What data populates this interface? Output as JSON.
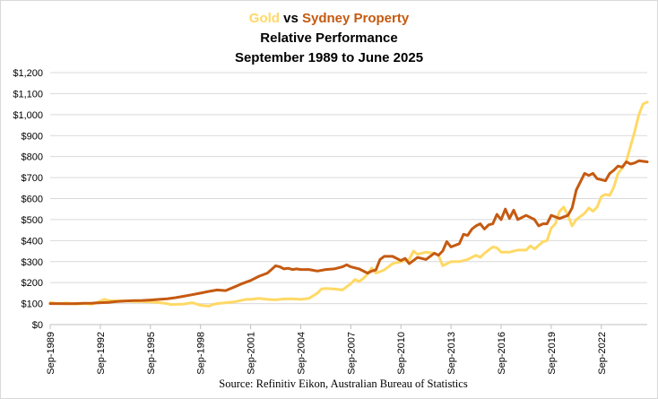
{
  "chart_data": {
    "type": "line",
    "title": {
      "gold_word": "Gold",
      "vs_word": " vs ",
      "property_word": "Sydney Property",
      "line2": "Relative Performance",
      "line3": "September 1989 to June 2025"
    },
    "xlabel": "",
    "ylabel": "",
    "ylim": [
      0,
      1200
    ],
    "y_ticks": [
      0,
      100,
      200,
      300,
      400,
      500,
      600,
      700,
      800,
      900,
      1000,
      1100,
      1200
    ],
    "y_tick_labels": [
      "$0",
      "$100",
      "$200",
      "$300",
      "$400",
      "$500",
      "$600",
      "$700",
      "$800",
      "$900",
      "$1,000",
      "$1,100",
      "$1,200"
    ],
    "xlim": [
      1989.75,
      2025.5
    ],
    "x_ticks": [
      1989.75,
      1992.75,
      1995.75,
      1998.75,
      2001.75,
      2004.75,
      2007.75,
      2010.75,
      2013.75,
      2016.75,
      2019.75,
      2022.75
    ],
    "x_tick_labels": [
      "Sep-1989",
      "Sep-1992",
      "Sep-1995",
      "Sep-1998",
      "Sep-2001",
      "Sep-2004",
      "Sep-2007",
      "Sep-2010",
      "Sep-2013",
      "Sep-2016",
      "Sep-2019",
      "Sep-2022"
    ],
    "grid": true,
    "legend": "none",
    "source": "Source: Refinitiv Eikon, Australian Bureau of Statistics",
    "colors": {
      "gold": "#ffd966",
      "property": "#c55a11",
      "grid": "#d9d9d9",
      "axis": "#bfbfbf"
    },
    "series": [
      {
        "name": "Gold",
        "color": "#ffd966",
        "x": [
          1989.75,
          1990.25,
          1990.75,
          1991.25,
          1991.75,
          1992.25,
          1992.75,
          1993.0,
          1993.25,
          1993.5,
          1993.75,
          1994.25,
          1994.75,
          1995.25,
          1995.75,
          1996.25,
          1996.75,
          1997.0,
          1997.25,
          1997.75,
          1998.25,
          1998.5,
          1998.75,
          1999.25,
          1999.5,
          1999.75,
          2000.25,
          2000.75,
          2001.25,
          2001.5,
          2001.75,
          2002.25,
          2002.75,
          2003.25,
          2003.75,
          2004.25,
          2004.75,
          2005.25,
          2005.75,
          2006.0,
          2006.25,
          2006.75,
          2007.25,
          2007.75,
          2008.0,
          2008.25,
          2008.5,
          2008.75,
          2009.0,
          2009.25,
          2009.75,
          2010.25,
          2010.75,
          2011.25,
          2011.5,
          2011.75,
          2012.25,
          2012.75,
          2013.0,
          2013.25,
          2013.5,
          2013.75,
          2014.25,
          2014.75,
          2015.25,
          2015.5,
          2015.75,
          2016.25,
          2016.5,
          2016.75,
          2017.25,
          2017.75,
          2018.25,
          2018.5,
          2018.75,
          2019.25,
          2019.5,
          2019.75,
          2020.0,
          2020.25,
          2020.5,
          2020.75,
          2021.0,
          2021.25,
          2021.75,
          2022.0,
          2022.25,
          2022.5,
          2022.75,
          2023.0,
          2023.25,
          2023.5,
          2023.75,
          2024.0,
          2024.25,
          2024.5,
          2024.75,
          2025.0,
          2025.25,
          2025.5
        ],
        "values": [
          105,
          100,
          103,
          98,
          100,
          97,
          112,
          120,
          115,
          113,
          113,
          113,
          110,
          110,
          108,
          105,
          100,
          95,
          96,
          98,
          104,
          98,
          92,
          88,
          96,
          100,
          104,
          108,
          116,
          120,
          120,
          125,
          120,
          118,
          122,
          123,
          120,
          125,
          150,
          170,
          172,
          170,
          165,
          195,
          215,
          205,
          220,
          240,
          270,
          245,
          260,
          290,
          300,
          310,
          350,
          335,
          345,
          340,
          330,
          280,
          290,
          300,
          300,
          310,
          330,
          320,
          340,
          370,
          365,
          345,
          345,
          355,
          355,
          375,
          360,
          395,
          400,
          460,
          480,
          540,
          560,
          520,
          470,
          500,
          530,
          555,
          540,
          560,
          610,
          620,
          615,
          655,
          720,
          745,
          780,
          850,
          920,
          1000,
          1050,
          1060
        ]
      },
      {
        "name": "Sydney Property",
        "color": "#c55a11",
        "x": [
          1989.75,
          1990.25,
          1990.75,
          1991.25,
          1991.75,
          1992.25,
          1992.75,
          1993.25,
          1993.75,
          1994.25,
          1994.75,
          1995.25,
          1995.75,
          1996.25,
          1996.75,
          1997.25,
          1997.75,
          1998.25,
          1998.75,
          1999.25,
          1999.75,
          2000.25,
          2000.75,
          2001.25,
          2001.75,
          2002.25,
          2002.75,
          2003.0,
          2003.25,
          2003.5,
          2003.75,
          2004.0,
          2004.25,
          2004.5,
          2004.75,
          2005.25,
          2005.75,
          2006.25,
          2006.75,
          2007.25,
          2007.5,
          2007.75,
          2008.25,
          2008.75,
          2009.0,
          2009.25,
          2009.5,
          2009.75,
          2010.25,
          2010.75,
          2011.0,
          2011.25,
          2011.75,
          2012.25,
          2012.75,
          2013.0,
          2013.25,
          2013.5,
          2013.75,
          2014.25,
          2014.5,
          2014.75,
          2015.0,
          2015.25,
          2015.5,
          2015.75,
          2016.0,
          2016.25,
          2016.5,
          2016.75,
          2017.0,
          2017.25,
          2017.5,
          2017.75,
          2018.25,
          2018.75,
          2019.0,
          2019.25,
          2019.5,
          2019.75,
          2020.25,
          2020.75,
          2021.0,
          2021.25,
          2021.75,
          2022.0,
          2022.25,
          2022.5,
          2022.75,
          2023.0,
          2023.25,
          2023.5,
          2023.75,
          2024.0,
          2024.25,
          2024.5,
          2024.75,
          2025.0,
          2025.5
        ],
        "values": [
          100,
          100,
          99,
          100,
          101,
          102,
          104,
          106,
          110,
          112,
          114,
          115,
          117,
          120,
          123,
          128,
          135,
          142,
          150,
          158,
          165,
          162,
          178,
          195,
          210,
          230,
          245,
          262,
          280,
          275,
          265,
          268,
          262,
          265,
          262,
          262,
          255,
          262,
          265,
          275,
          285,
          275,
          265,
          245,
          255,
          260,
          310,
          325,
          325,
          305,
          315,
          290,
          320,
          310,
          340,
          330,
          350,
          395,
          370,
          385,
          430,
          425,
          455,
          470,
          480,
          455,
          475,
          480,
          525,
          500,
          550,
          505,
          545,
          500,
          520,
          500,
          470,
          480,
          480,
          520,
          505,
          520,
          555,
          640,
          720,
          710,
          720,
          695,
          690,
          685,
          720,
          735,
          755,
          750,
          775,
          765,
          770,
          780,
          775
        ]
      }
    ]
  }
}
